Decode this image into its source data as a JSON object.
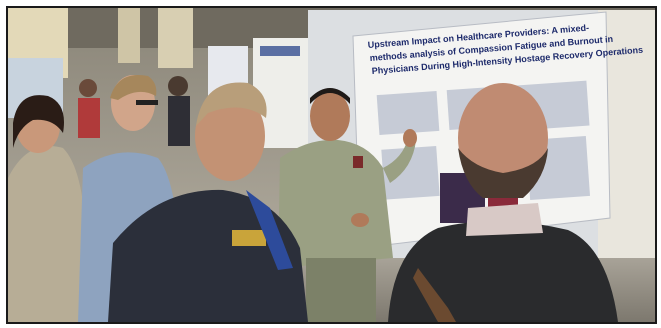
{
  "photo": {
    "description_icon": "photo-icon",
    "poster": {
      "title_line_1": "Upstream Impact on Healthcare Providers: A mixed-",
      "title_line_2": "methods analysis of Compassion Fatigue and Burnout in",
      "title_line_3": "Physicians During High-Intensity Hostage Recovery Operations"
    }
  }
}
